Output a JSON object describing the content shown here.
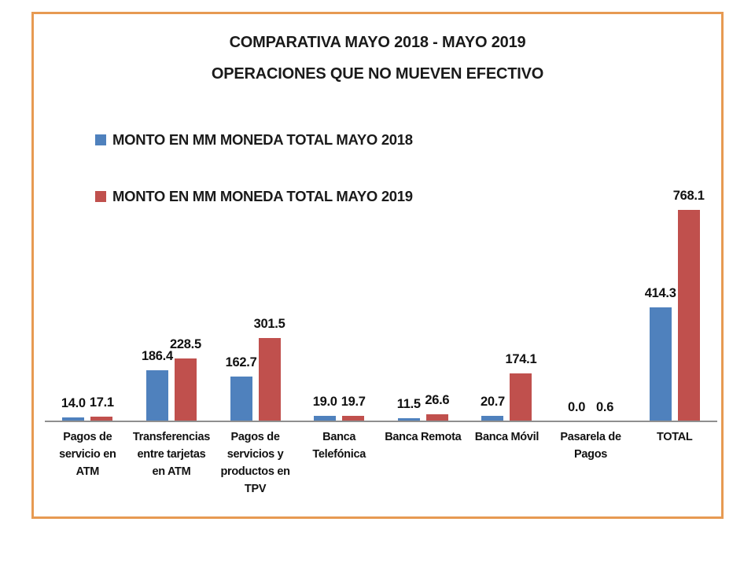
{
  "frame": {
    "border_color": "#E79A52"
  },
  "title": {
    "line1": "COMPARATIVA MAYO 2018 - MAYO 2019",
    "line2": "OPERACIONES QUE NO MUEVEN EFECTIVO"
  },
  "chart_data": {
    "type": "bar",
    "title": "COMPARATIVA MAYO 2018 - MAYO 2019 OPERACIONES QUE NO MUEVEN EFECTIVO",
    "categories": [
      "Pagos de servicio en ATM",
      "Transferencias entre tarjetas en ATM",
      "Pagos de servicios y productos en TPV",
      "Banca Telefónica",
      "Banca Remota",
      "Banca Móvil",
      "Pasarela de Pagos",
      "TOTAL"
    ],
    "series": [
      {
        "name": "MONTO EN MM MONEDA TOTAL MAYO 2018",
        "color": "#4F81BD",
        "values": [
          14.0,
          186.4,
          162.7,
          19.0,
          11.5,
          20.7,
          0.0,
          414.3
        ]
      },
      {
        "name": "MONTO EN MM MONEDA TOTAL MAYO 2019",
        "color": "#C0504D",
        "values": [
          17.1,
          228.5,
          301.5,
          19.7,
          26.6,
          174.1,
          0.6,
          768.1
        ]
      }
    ],
    "ylim": [
      0,
      800
    ],
    "xlabel": "",
    "ylabel": "",
    "grid": false,
    "data_labels": true,
    "label_decimals": 1,
    "legend_position": "upper-left",
    "axis_line_color": "#8f8f8f"
  }
}
